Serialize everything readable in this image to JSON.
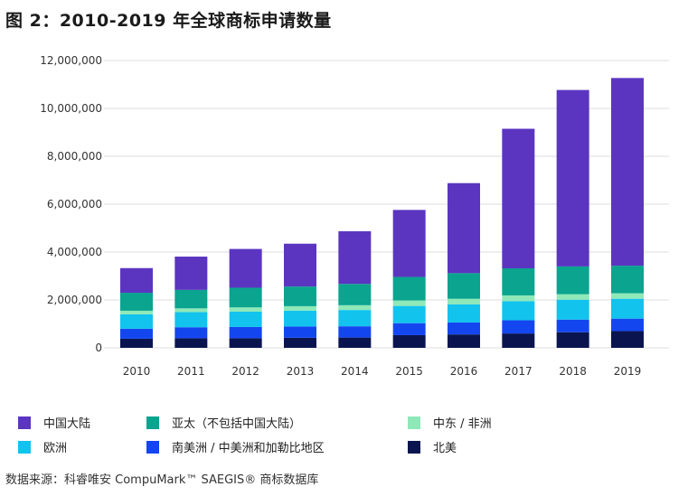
{
  "title": "图 2：2010-2019 年全球商标申请数量",
  "source": "数据来源：科睿唯安 CompuMark™ SAEGIS® 商标数据库",
  "colors": {
    "china": "#5b35c0",
    "asia_pacific": "#0aa48f",
    "middle_east_africa": "#8ee8b8",
    "europe": "#12c3ee",
    "south_central_america": "#1446f0",
    "north_america": "#0a1550",
    "grid": "#dddddd",
    "axis_text": "#333333"
  },
  "chart_data": {
    "type": "bar",
    "stacked": true,
    "categories": [
      "2010",
      "2011",
      "2012",
      "2013",
      "2014",
      "2015",
      "2016",
      "2017",
      "2018",
      "2019"
    ],
    "ylim": [
      0,
      12000000
    ],
    "yticks": [
      "0",
      "2,000,000",
      "4,000,000",
      "6,000,000",
      "8,000,000",
      "10,000,000",
      "12,000,000"
    ],
    "ytick_values": [
      0,
      2000000,
      4000000,
      6000000,
      8000000,
      10000000,
      12000000
    ],
    "grid": true,
    "legend_position": "bottom",
    "series": [
      {
        "key": "north_america",
        "name": "北美",
        "values": [
          380000,
          400000,
          400000,
          420000,
          430000,
          530000,
          560000,
          600000,
          650000,
          700000
        ]
      },
      {
        "key": "south_central_america",
        "name": "南美洲 / 中美洲和加勒比地区",
        "values": [
          420000,
          460000,
          470000,
          470000,
          470000,
          500000,
          500000,
          550000,
          530000,
          520000
        ]
      },
      {
        "key": "europe",
        "name": "欧洲",
        "values": [
          600000,
          630000,
          640000,
          660000,
          680000,
          720000,
          760000,
          800000,
          830000,
          830000
        ]
      },
      {
        "key": "middle_east_africa",
        "name": "中东 / 非洲",
        "values": [
          150000,
          160000,
          180000,
          190000,
          200000,
          230000,
          230000,
          240000,
          230000,
          230000
        ]
      },
      {
        "key": "asia_pacific",
        "name": "亚太（不包括中国大陆）",
        "values": [
          750000,
          770000,
          820000,
          820000,
          890000,
          980000,
          1070000,
          1130000,
          1160000,
          1150000
        ]
      },
      {
        "key": "china",
        "name": "中国大陆",
        "values": [
          1030000,
          1390000,
          1620000,
          1790000,
          2200000,
          2800000,
          3760000,
          5830000,
          7370000,
          7840000
        ]
      }
    ]
  },
  "legend": [
    {
      "key": "china",
      "label": "中国大陆"
    },
    {
      "key": "asia_pacific",
      "label": "亚太（不包括中国大陆）"
    },
    {
      "key": "middle_east_africa",
      "label": "中东 / 非洲"
    },
    {
      "key": "europe",
      "label": "欧洲"
    },
    {
      "key": "south_central_america",
      "label": "南美洲 / 中美洲和加勒比地区"
    },
    {
      "key": "north_america",
      "label": "北美"
    }
  ]
}
